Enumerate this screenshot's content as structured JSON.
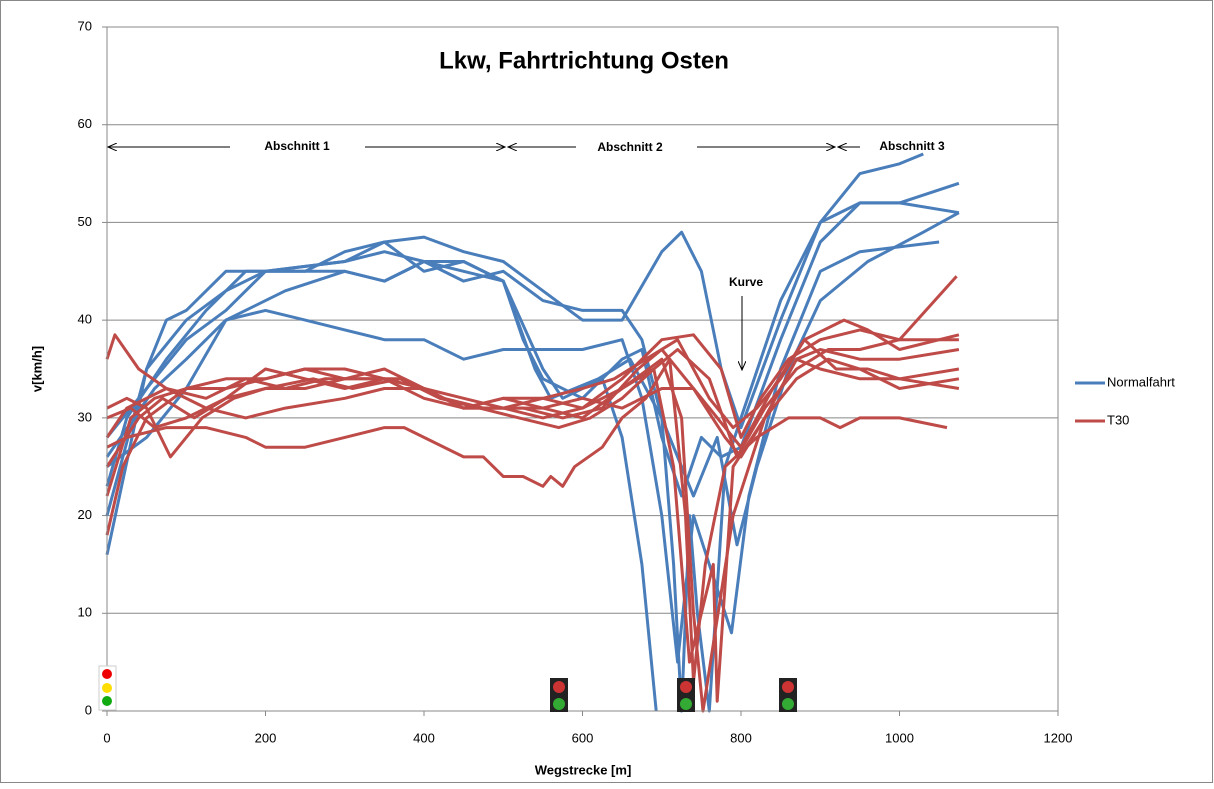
{
  "chart_data": {
    "type": "line",
    "title": "Lkw, Fahrtrichtung Osten",
    "x_label": "Wegstrecke  [m]",
    "y_label": "v[km/h]",
    "xlim": [
      0,
      1200
    ],
    "xticks": [
      0,
      200,
      400,
      600,
      800,
      1000,
      1200
    ],
    "ylim": [
      0,
      70
    ],
    "yticks": [
      0,
      10,
      20,
      30,
      40,
      50,
      60,
      70
    ],
    "grid": true,
    "legend": "right",
    "annotations": [
      "Abschnitt 1",
      "Abschnitt 2",
      "Abschnitt 3",
      "Kurve"
    ],
    "series": [
      {
        "name": "Normalfahrt",
        "color": "#4a7ebb",
        "runs": [
          {
            "x": [
              0,
              50,
              75,
              100,
              150,
              250,
              300,
              350,
              400,
              450,
              500,
              550,
              600,
              650,
              700,
              725,
              750,
              775,
              800,
              850,
              900,
              950,
              1000,
              1030
            ],
            "values": [
              16,
              35,
              40,
              41,
              45,
              45,
              47,
              48,
              48.5,
              47,
              46,
              43,
              40,
              40,
              47,
              49,
              45,
              35,
              29,
              40,
              50,
              55,
              56,
              57
            ]
          },
          {
            "x": [
              0,
              25,
              75,
              125,
              175,
              300,
              350,
              400,
              450,
              500,
              550,
              575,
              600,
              625,
              650,
              675,
              693
            ],
            "values": [
              23,
              30,
              36,
              41,
              45,
              45,
              44,
              46,
              45,
              44,
              35,
              32,
              33,
              34,
              28,
              15,
              0
            ]
          },
          {
            "x": [
              0,
              50,
              100,
              150,
              200,
              300,
              350,
              400,
              450,
              500,
              550,
              600,
              650,
              675,
              700,
              715,
              725,
              735,
              745,
              760,
              780,
              800,
              850,
              900,
              950,
              1000,
              1075
            ],
            "values": [
              28,
              33,
              38,
              41,
              45,
              46,
              47,
              46,
              44,
              45,
              42,
              41,
              41,
              38,
              30,
              15,
              0,
              20,
              10,
              0,
              25,
              30,
              42,
              50,
              52,
              52,
              51
            ]
          },
          {
            "x": [
              0,
              50,
              100,
              150,
              200,
              300,
              350,
              400,
              450,
              500,
              525,
              550,
              600,
              650,
              675,
              700,
              725,
              750,
              775,
              800,
              850,
              900,
              950,
              1000,
              1075
            ],
            "values": [
              20,
              35,
              40,
              43,
              45,
              46,
              48,
              45,
              46,
              44,
              38,
              34,
              32,
              36,
              37,
              28,
              22,
              28,
              26,
              27,
              38,
              48,
              52,
              52,
              54
            ]
          },
          {
            "x": [
              0,
              50,
              100,
              150,
              200,
              250,
              300,
              350,
              400,
              450,
              500,
              550,
              600,
              650,
              675,
              700,
              720,
              740,
              760,
              788,
              810,
              850,
              900,
              950,
              1050
            ],
            "values": [
              25,
              28,
              33,
              40,
              41,
              40,
              39,
              38,
              38,
              36,
              37,
              37,
              37,
              38,
              32,
              20,
              5,
              20,
              15,
              8,
              22,
              35,
              45,
              47,
              48
            ]
          },
          {
            "x": [
              0,
              60,
              100,
              150,
              225,
              300,
              350,
              400,
              450,
              500,
              540,
              560,
              620,
              660,
              700,
              740,
              770,
              795,
              820,
              860,
              900,
              960,
              1030,
              1075
            ],
            "values": [
              26,
              33,
              36,
              40,
              43,
              45,
              44,
              46,
              46,
              44,
              35,
              32,
              34,
              36,
              30,
              22,
              28,
              17,
              25,
              35,
              42,
              46,
              49,
              51
            ]
          }
        ]
      },
      {
        "name": "T30",
        "color": "#be4b48",
        "runs": [
          {
            "x": [
              0,
              10,
              40,
              75,
              125,
              175,
              225,
              300,
              350,
              400,
              450,
              500,
              550,
              600,
              650,
              700,
              740,
              775,
              800,
              825,
              860,
              900,
              950,
              1000,
              1075
            ],
            "values": [
              36,
              38.5,
              35,
              33,
              31,
              30,
              31,
              32,
              33,
              33,
              31,
              31,
              30,
              31,
              34,
              38,
              38.5,
              35,
              28,
              32,
              36,
              38,
              39,
              38,
              38
            ]
          },
          {
            "x": [
              0,
              25,
              75,
              125,
              175,
              200,
              250,
              300,
              350,
              375,
              400,
              450,
              475,
              500,
              525,
              550,
              560,
              575,
              590,
              625,
              650,
              680,
              710,
              730,
              740,
              755,
              780,
              820,
              860,
              900,
              925,
              950,
              1000,
              1060
            ],
            "values": [
              27,
              28,
              29,
              29,
              28,
              27,
              27,
              28,
              29,
              29,
              28,
              26,
              26,
              24,
              24,
              23,
              24,
              23,
              25,
              27,
              30,
              32,
              36,
              20,
              3,
              15,
              25,
              28,
              30,
              30,
              29,
              30,
              30,
              29
            ]
          },
          {
            "x": [
              0,
              20,
              50,
              100,
              150,
              200,
              250,
              300,
              350,
              400,
              450,
              500,
              550,
              600,
              650,
              700,
              725,
              740,
              752,
              790,
              830,
              870,
              900,
              950,
              1000,
              1075
            ],
            "values": [
              18,
              25,
              30,
              33,
              34,
              34,
              35,
              34,
              34,
              33,
              31,
              32,
              31,
              30,
              33,
              36,
              30,
              10,
              0,
              20,
              30,
              36,
              35,
              34,
              34,
              35
            ]
          },
          {
            "x": [
              0,
              30,
              60,
              100,
              150,
              200,
              250,
              300,
              350,
              400,
              450,
              500,
              550,
              600,
              650,
              690,
              715,
              735,
              765,
              770,
              790,
              830,
              870,
              900,
              950,
              1000,
              1075
            ],
            "values": [
              22,
              30,
              32,
              33,
              33,
              34,
              35,
              35,
              34,
              32,
              31,
              32,
              32,
              31,
              33,
              35,
              25,
              5,
              15,
              1,
              25,
              30,
              36,
              37,
              36,
              36,
              37
            ]
          },
          {
            "x": [
              0,
              25,
              75,
              125,
              175,
              225,
              275,
              325,
              375,
              425,
              475,
              525,
              575,
              625,
              670,
              700,
              740,
              800,
              840,
              880,
              920,
              960,
              1000,
              1075
            ],
            "values": [
              28,
              31,
              33,
              32,
              34,
              33,
              34,
              34,
              34,
              32,
              31,
              31,
              30,
              31,
              35,
              37,
              33,
              27,
              33,
              38,
              35,
              35,
              34,
              33
            ]
          },
          {
            "x": [
              0,
              40,
              70,
              110,
              150,
              200,
              260,
              310,
              370,
              420,
              470,
              520,
              570,
              610,
              650,
              690,
              720,
              760,
              795,
              830,
              870,
              910,
              950,
              1000,
              1072
            ],
            "values": [
              25,
              30,
              32,
              30,
              32,
              33,
              34,
              33,
              34,
              32,
              31,
              30,
              29,
              30,
              32,
              35,
              37,
              34,
              26,
              31,
              35,
              37,
              37,
              38,
              44.5
            ]
          },
          {
            "x": [
              0,
              25,
              50,
              80,
              120,
              160,
              200,
              250,
              300,
              350,
              400,
              450,
              500,
              550,
              600,
              640,
              680,
              720,
              760,
              790,
              820,
              850,
              880,
              930,
              960,
              1000,
              1075
            ],
            "values": [
              31,
              32,
              31,
              26,
              30,
              32,
              33,
              33,
              34,
              35,
              33,
              31,
              31,
              32,
              33,
              34,
              36,
              38,
              32,
              29,
              31,
              34,
              38,
              40,
              39,
              37,
              38.5
            ]
          },
          {
            "x": [
              0,
              30,
              60,
              100,
              150,
              200,
              250,
              300,
              350,
              400,
              450,
              500,
              550,
              600,
              650,
              700,
              740,
              780,
              800,
              830,
              870,
              910,
              950,
              1000,
              1075
            ],
            "values": [
              30,
              31,
              29,
              30,
              32,
              35,
              34,
              33,
              34,
              33,
              32,
              31,
              31,
              32,
              31,
              33,
              33,
              28,
              26,
              30,
              34,
              36,
              35,
              33,
              34
            ]
          }
        ]
      }
    ]
  }
}
